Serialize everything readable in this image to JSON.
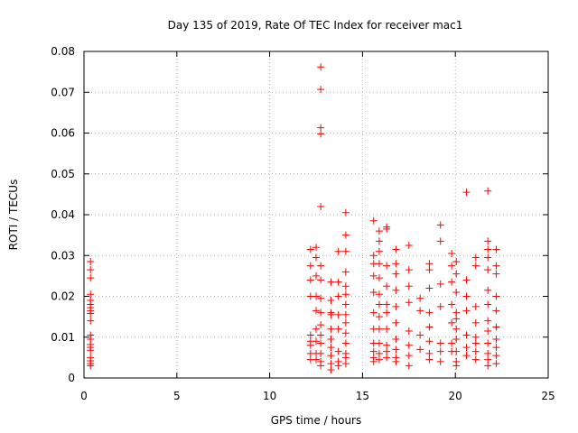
{
  "chart_data": {
    "type": "scatter",
    "title": "Day 135 of 2019, Rate Of TEC Index for receiver mac1",
    "xlabel": "GPS time / hours",
    "ylabel": "ROTI / TECUs",
    "xlim": [
      0,
      25
    ],
    "ylim": [
      0,
      0.08
    ],
    "x_ticks": [
      0,
      5,
      10,
      15,
      20,
      25
    ],
    "x_tick_labels": [
      "0",
      "5",
      "10",
      "15",
      "20",
      "25"
    ],
    "y_ticks": [
      0,
      0.01,
      0.02,
      0.03,
      0.04,
      0.05,
      0.06,
      0.07,
      0.08
    ],
    "y_tick_labels": [
      "0",
      "0.01",
      "0.02",
      "0.03",
      "0.04",
      "0.05",
      "0.06",
      "0.07",
      "0.08"
    ],
    "grid": true,
    "marker": "plus",
    "color": "#ff0000",
    "series": [
      {
        "name": "ROTI",
        "points": [
          [
            0.35,
            0.0285
          ],
          [
            0.35,
            0.0265
          ],
          [
            0.35,
            0.0245
          ],
          [
            0.35,
            0.0205
          ],
          [
            0.35,
            0.019
          ],
          [
            0.35,
            0.018
          ],
          [
            0.35,
            0.0172
          ],
          [
            0.35,
            0.0165
          ],
          [
            0.35,
            0.0158
          ],
          [
            0.35,
            0.014
          ],
          [
            0.35,
            0.0105
          ],
          [
            0.35,
            0.0095
          ],
          [
            0.35,
            0.0082
          ],
          [
            0.35,
            0.0075
          ],
          [
            0.35,
            0.0068
          ],
          [
            0.35,
            0.005
          ],
          [
            0.35,
            0.0042
          ],
          [
            0.35,
            0.0035
          ],
          [
            0.35,
            0.003
          ],
          [
            12.2,
            0.0315
          ],
          [
            12.2,
            0.0275
          ],
          [
            12.2,
            0.024
          ],
          [
            12.2,
            0.02
          ],
          [
            12.2,
            0.0105
          ],
          [
            12.2,
            0.009
          ],
          [
            12.2,
            0.008
          ],
          [
            12.2,
            0.006
          ],
          [
            12.2,
            0.0045
          ],
          [
            12.5,
            0.032
          ],
          [
            12.5,
            0.0295
          ],
          [
            12.5,
            0.025
          ],
          [
            12.5,
            0.02
          ],
          [
            12.5,
            0.0165
          ],
          [
            12.5,
            0.012
          ],
          [
            12.5,
            0.009
          ],
          [
            12.5,
            0.006
          ],
          [
            12.5,
            0.0045
          ],
          [
            12.75,
            0.0762
          ],
          [
            12.75,
            0.0707
          ],
          [
            12.75,
            0.0613
          ],
          [
            12.75,
            0.0598
          ],
          [
            12.75,
            0.042
          ],
          [
            12.75,
            0.0275
          ],
          [
            12.75,
            0.024
          ],
          [
            12.75,
            0.0195
          ],
          [
            12.75,
            0.016
          ],
          [
            12.75,
            0.013
          ],
          [
            12.75,
            0.0105
          ],
          [
            12.75,
            0.0085
          ],
          [
            12.75,
            0.006
          ],
          [
            12.75,
            0.004
          ],
          [
            12.75,
            0.003
          ],
          [
            13.3,
            0.0235
          ],
          [
            13.3,
            0.019
          ],
          [
            13.3,
            0.016
          ],
          [
            13.3,
            0.0155
          ],
          [
            13.3,
            0.012
          ],
          [
            13.3,
            0.0095
          ],
          [
            13.3,
            0.0075
          ],
          [
            13.3,
            0.0055
          ],
          [
            13.3,
            0.0035
          ],
          [
            13.3,
            0.002
          ],
          [
            13.7,
            0.031
          ],
          [
            13.7,
            0.0235
          ],
          [
            13.7,
            0.02
          ],
          [
            13.7,
            0.0155
          ],
          [
            13.7,
            0.012
          ],
          [
            13.7,
            0.0065
          ],
          [
            13.7,
            0.004
          ],
          [
            13.7,
            0.003
          ],
          [
            14.1,
            0.0405
          ],
          [
            14.1,
            0.035
          ],
          [
            14.1,
            0.031
          ],
          [
            14.1,
            0.026
          ],
          [
            14.1,
            0.0225
          ],
          [
            14.1,
            0.0205
          ],
          [
            14.1,
            0.018
          ],
          [
            14.1,
            0.0155
          ],
          [
            14.1,
            0.0135
          ],
          [
            14.1,
            0.011
          ],
          [
            14.1,
            0.0085
          ],
          [
            14.1,
            0.006
          ],
          [
            14.1,
            0.005
          ],
          [
            14.1,
            0.0035
          ],
          [
            15.6,
            0.0385
          ],
          [
            15.6,
            0.03
          ],
          [
            15.6,
            0.028
          ],
          [
            15.6,
            0.025
          ],
          [
            15.6,
            0.021
          ],
          [
            15.6,
            0.016
          ],
          [
            15.6,
            0.012
          ],
          [
            15.6,
            0.0085
          ],
          [
            15.6,
            0.0065
          ],
          [
            15.6,
            0.005
          ],
          [
            15.6,
            0.004
          ],
          [
            15.9,
            0.036
          ],
          [
            15.9,
            0.0335
          ],
          [
            15.9,
            0.031
          ],
          [
            15.9,
            0.028
          ],
          [
            15.9,
            0.0245
          ],
          [
            15.9,
            0.0205
          ],
          [
            15.9,
            0.018
          ],
          [
            15.9,
            0.015
          ],
          [
            15.9,
            0.012
          ],
          [
            15.9,
            0.0085
          ],
          [
            15.9,
            0.006
          ],
          [
            15.9,
            0.0045
          ],
          [
            16.3,
            0.037
          ],
          [
            16.3,
            0.0365
          ],
          [
            16.3,
            0.0275
          ],
          [
            16.3,
            0.0225
          ],
          [
            16.3,
            0.018
          ],
          [
            16.3,
            0.016
          ],
          [
            16.3,
            0.012
          ],
          [
            16.3,
            0.008
          ],
          [
            16.3,
            0.0065
          ],
          [
            16.3,
            0.005
          ],
          [
            16.8,
            0.0315
          ],
          [
            16.8,
            0.028
          ],
          [
            16.8,
            0.0255
          ],
          [
            16.8,
            0.0215
          ],
          [
            16.8,
            0.0175
          ],
          [
            16.8,
            0.0135
          ],
          [
            16.8,
            0.0095
          ],
          [
            16.8,
            0.007
          ],
          [
            16.8,
            0.005
          ],
          [
            16.8,
            0.004
          ],
          [
            17.5,
            0.0325
          ],
          [
            17.5,
            0.0265
          ],
          [
            17.5,
            0.0225
          ],
          [
            17.5,
            0.0185
          ],
          [
            17.5,
            0.0115
          ],
          [
            17.5,
            0.008
          ],
          [
            17.5,
            0.0055
          ],
          [
            17.5,
            0.003
          ],
          [
            18.1,
            0.0195
          ],
          [
            18.1,
            0.0165
          ],
          [
            18.1,
            0.0105
          ],
          [
            18.1,
            0.007
          ],
          [
            18.6,
            0.028
          ],
          [
            18.6,
            0.0265
          ],
          [
            18.6,
            0.022
          ],
          [
            18.6,
            0.016
          ],
          [
            18.6,
            0.0125
          ],
          [
            18.6,
            0.009
          ],
          [
            18.6,
            0.006
          ],
          [
            18.6,
            0.0045
          ],
          [
            19.2,
            0.0375
          ],
          [
            19.2,
            0.0335
          ],
          [
            19.2,
            0.023
          ],
          [
            19.2,
            0.0175
          ],
          [
            19.2,
            0.0085
          ],
          [
            19.2,
            0.0065
          ],
          [
            19.2,
            0.004
          ],
          [
            19.8,
            0.0305
          ],
          [
            19.8,
            0.0275
          ],
          [
            19.8,
            0.0235
          ],
          [
            19.8,
            0.018
          ],
          [
            19.8,
            0.0135
          ],
          [
            19.8,
            0.0085
          ],
          [
            19.8,
            0.0065
          ],
          [
            20.05,
            0.0285
          ],
          [
            20.05,
            0.0255
          ],
          [
            20.05,
            0.021
          ],
          [
            20.05,
            0.016
          ],
          [
            20.05,
            0.0145
          ],
          [
            20.05,
            0.012
          ],
          [
            20.05,
            0.0095
          ],
          [
            20.05,
            0.0065
          ],
          [
            20.05,
            0.004
          ],
          [
            20.05,
            0.003
          ],
          [
            20.6,
            0.0455
          ],
          [
            20.6,
            0.024
          ],
          [
            20.6,
            0.02
          ],
          [
            20.6,
            0.0165
          ],
          [
            20.6,
            0.0105
          ],
          [
            20.6,
            0.0075
          ],
          [
            20.6,
            0.0055
          ],
          [
            21.1,
            0.0295
          ],
          [
            21.1,
            0.0275
          ],
          [
            21.1,
            0.0175
          ],
          [
            21.1,
            0.0135
          ],
          [
            21.1,
            0.01
          ],
          [
            21.1,
            0.0085
          ],
          [
            21.1,
            0.0065
          ],
          [
            21.1,
            0.0045
          ],
          [
            21.75,
            0.0458
          ],
          [
            21.75,
            0.0335
          ],
          [
            21.75,
            0.0315
          ],
          [
            21.75,
            0.0295
          ],
          [
            21.75,
            0.0265
          ],
          [
            21.75,
            0.0215
          ],
          [
            21.75,
            0.018
          ],
          [
            21.75,
            0.014
          ],
          [
            21.75,
            0.0115
          ],
          [
            21.75,
            0.0085
          ],
          [
            21.75,
            0.006
          ],
          [
            21.75,
            0.0045
          ],
          [
            21.75,
            0.003
          ],
          [
            22.2,
            0.0315
          ],
          [
            22.2,
            0.0275
          ],
          [
            22.2,
            0.0255
          ],
          [
            22.2,
            0.02
          ],
          [
            22.2,
            0.0165
          ],
          [
            22.2,
            0.0125
          ],
          [
            22.2,
            0.0095
          ],
          [
            22.2,
            0.0075
          ],
          [
            22.2,
            0.0055
          ],
          [
            22.2,
            0.0035
          ]
        ]
      }
    ]
  }
}
